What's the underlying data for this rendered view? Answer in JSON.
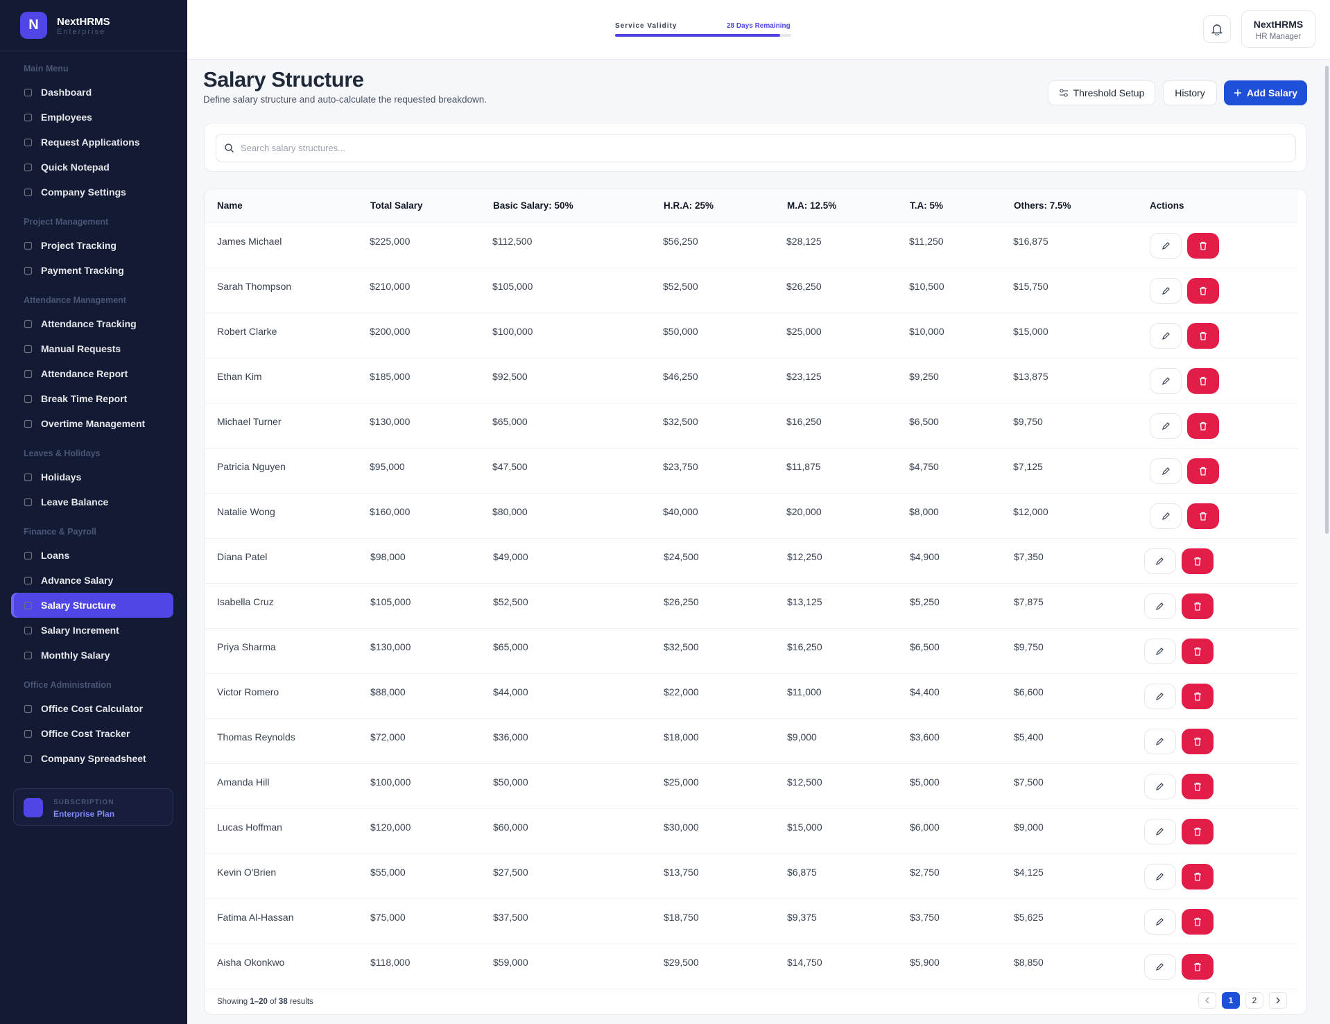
{
  "sidebar": {
    "brand": "NextHRMS",
    "brand_sub": "Enterprise",
    "sections": [
      {
        "title": "Main Menu",
        "items": [
          "Dashboard",
          "Employees",
          "Request Applications",
          "Quick Notepad",
          "Company Settings"
        ]
      },
      {
        "title": "Project Management",
        "items": [
          "Project Tracking",
          "Payment Tracking"
        ]
      },
      {
        "title": "Attendance Management",
        "items": [
          "Attendance Tracking",
          "Manual Requests",
          "Attendance Report",
          "Break Time Report",
          "Overtime Management"
        ]
      },
      {
        "title": "Leaves & Holidays",
        "items": [
          "Holidays",
          "Leave Balance"
        ]
      },
      {
        "title": "Finance & Payroll",
        "items": [
          "Loans",
          "Advance Salary",
          "Salary Structure",
          "Salary Increment",
          "Monthly Salary"
        ]
      },
      {
        "title": "Office Administration",
        "items": [
          "Office Cost Calculator",
          "Office Cost Tracker",
          "Company Spreadsheet"
        ]
      }
    ],
    "subscription": {
      "label": "SUBSCRIPTION",
      "plan": "Enterprise Plan"
    }
  },
  "header": {
    "validity_label": "Service Validity",
    "validity_remaining": "28 Days Remaining",
    "user_name": "NextHRMS",
    "user_role": "HR Manager"
  },
  "page": {
    "title": "Salary Structure",
    "subtitle": "Define salary structure and auto-calculate the requested breakdown.",
    "threshold": "Threshold Setup",
    "history": "History",
    "add": "Add Salary"
  },
  "search_placeholder": "Search salary structures...",
  "table": {
    "columns": [
      "Name",
      "Total Salary",
      "Basic Salary: 50%",
      "H.R.A: 25%",
      "M.A: 12.5%",
      "T.A: 5%",
      "Others: 7.5%",
      "Actions"
    ],
    "rows": [
      [
        "James Michael",
        "$225,000",
        "$112,500",
        "$56,250",
        "$28,125",
        "$11,250",
        "$16,875"
      ],
      [
        "Sarah Thompson",
        "$210,000",
        "$105,000",
        "$52,500",
        "$26,250",
        "$10,500",
        "$15,750"
      ],
      [
        "Robert Clarke",
        "$200,000",
        "$100,000",
        "$50,000",
        "$25,000",
        "$10,000",
        "$15,000"
      ],
      [
        "Ethan Kim",
        "$185,000",
        "$92,500",
        "$46,250",
        "$23,125",
        "$9,250",
        "$13,875"
      ],
      [
        "Michael Turner",
        "$130,000",
        "$65,000",
        "$32,500",
        "$16,250",
        "$6,500",
        "$9,750"
      ],
      [
        "Patricia Nguyen",
        "$95,000",
        "$47,500",
        "$23,750",
        "$11,875",
        "$4,750",
        "$7,125"
      ],
      [
        "Natalie Wong",
        "$160,000",
        "$80,000",
        "$40,000",
        "$20,000",
        "$8,000",
        "$12,000"
      ],
      [
        "Diana Patel",
        "$98,000",
        "$49,000",
        "$24,500",
        "$12,250",
        "$4,900",
        "$7,350"
      ],
      [
        "Isabella Cruz",
        "$105,000",
        "$52,500",
        "$26,250",
        "$13,125",
        "$5,250",
        "$7,875"
      ],
      [
        "Priya Sharma",
        "$130,000",
        "$65,000",
        "$32,500",
        "$16,250",
        "$6,500",
        "$9,750"
      ],
      [
        "Victor Romero",
        "$88,000",
        "$44,000",
        "$22,000",
        "$11,000",
        "$4,400",
        "$6,600"
      ],
      [
        "Thomas Reynolds",
        "$72,000",
        "$36,000",
        "$18,000",
        "$9,000",
        "$3,600",
        "$5,400"
      ],
      [
        "Amanda Hill",
        "$100,000",
        "$50,000",
        "$25,000",
        "$12,500",
        "$5,000",
        "$7,500"
      ],
      [
        "Lucas Hoffman",
        "$120,000",
        "$60,000",
        "$30,000",
        "$15,000",
        "$6,000",
        "$9,000"
      ],
      [
        "Kevin O'Brien",
        "$55,000",
        "$27,500",
        "$13,750",
        "$6,875",
        "$2,750",
        "$4,125"
      ],
      [
        "Fatima Al-Hassan",
        "$75,000",
        "$37,500",
        "$18,750",
        "$9,375",
        "$3,750",
        "$5,625"
      ],
      [
        "Aisha Okonkwo",
        "$118,000",
        "$59,000",
        "$29,500",
        "$14,750",
        "$5,900",
        "$8,850"
      ]
    ]
  },
  "footer": {
    "showing": "Showing",
    "range": "1–20",
    "of": "of",
    "total": "38",
    "results": "results",
    "pages": [
      "1",
      "2"
    ]
  }
}
